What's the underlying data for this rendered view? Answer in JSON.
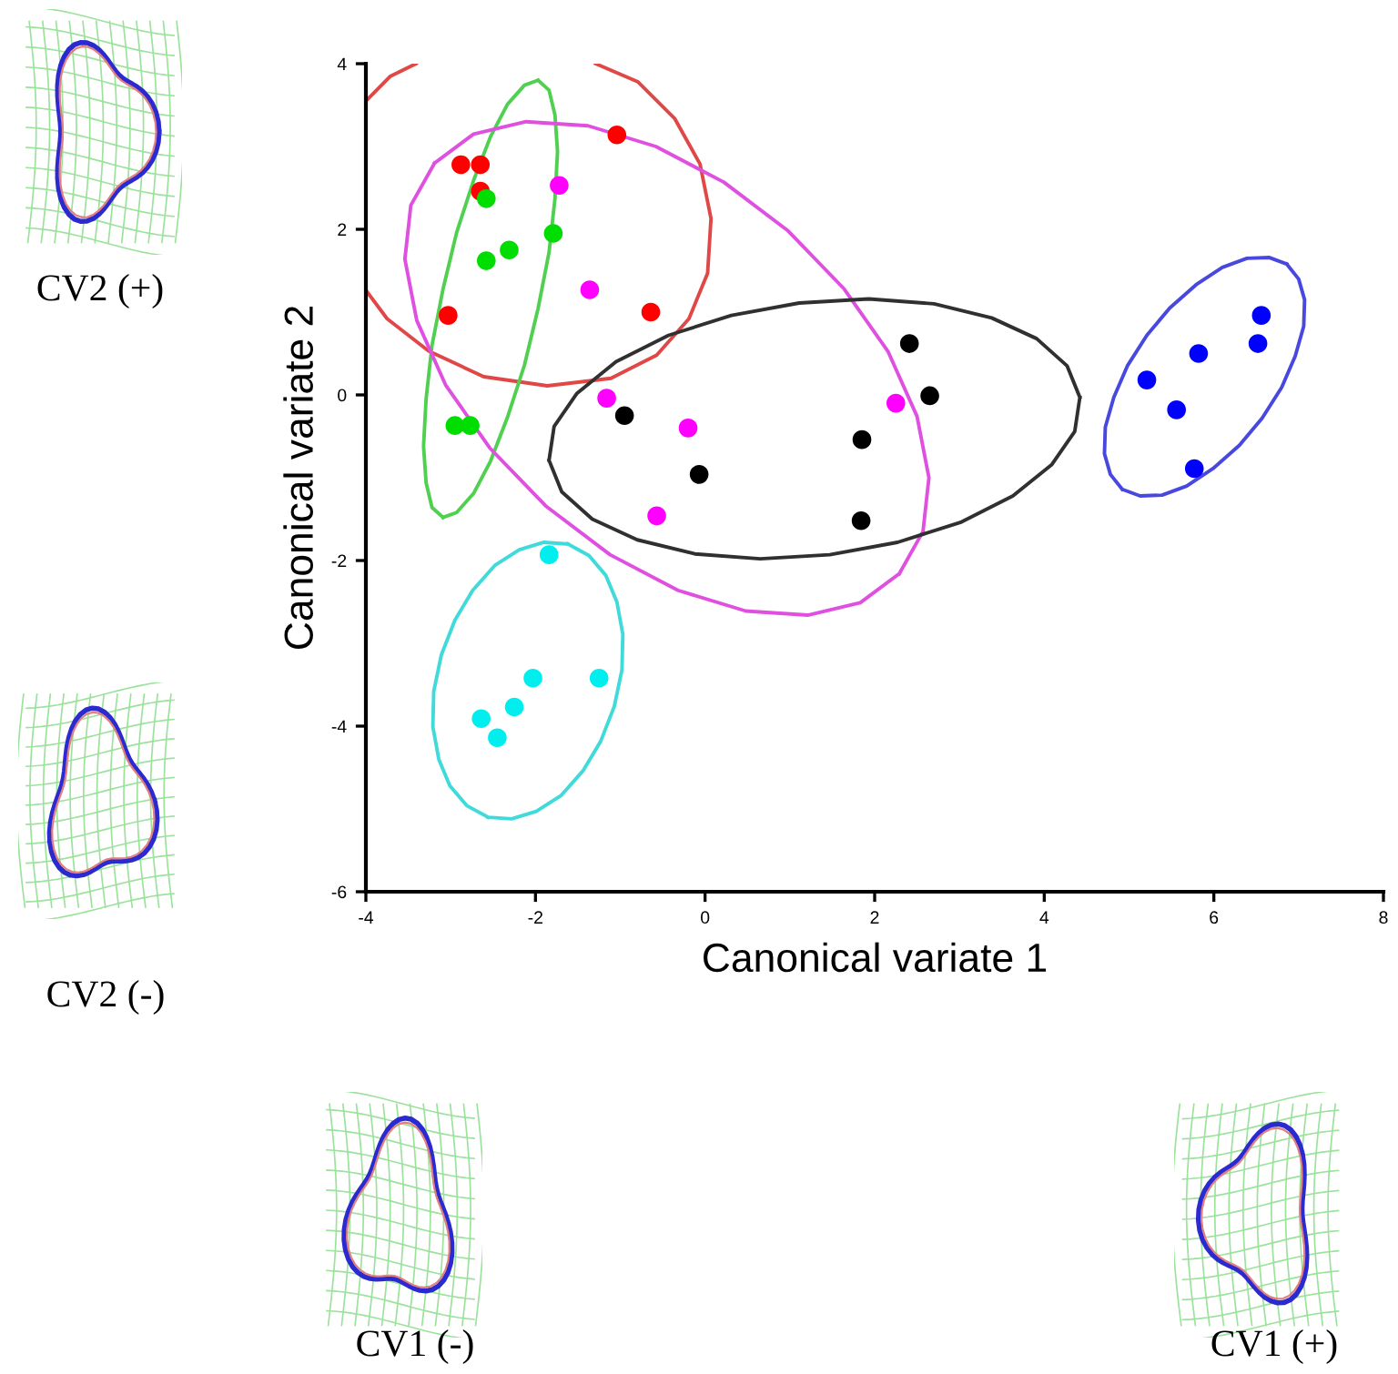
{
  "chart_data": {
    "type": "scatter",
    "xlabel": "Canonical variate 1",
    "ylabel": "Canonical variate 2",
    "xlim": [
      -4,
      8
    ],
    "xticks": [
      -4,
      -2,
      0,
      2,
      4,
      6,
      8
    ],
    "ylim": [
      -6,
      4
    ],
    "yticks": [
      -6,
      -4,
      -2,
      0,
      2,
      4
    ],
    "grid": false,
    "legend": false,
    "marker": "circle",
    "annotations": [
      "CV2 (+)",
      "CV2 (-)",
      "CV1 (-)",
      "CV1 (+)"
    ],
    "series": [
      {
        "color": "#ff0000",
        "x": [
          -2.88,
          -2.65,
          -2.65,
          -3.03,
          -1.04,
          -0.64
        ],
        "values": [
          2.78,
          2.78,
          2.46,
          0.96,
          3.14,
          1.0
        ]
      },
      {
        "color": "#00dd00",
        "x": [
          -2.58,
          -2.58,
          -2.31,
          -1.79,
          -2.95,
          -2.77
        ],
        "values": [
          2.37,
          1.62,
          1.75,
          1.95,
          -0.37,
          -0.37
        ]
      },
      {
        "color": "#ff00ff",
        "x": [
          -1.72,
          -1.36,
          -1.16,
          -0.2,
          -0.57,
          2.25
        ],
        "values": [
          2.53,
          1.27,
          -0.04,
          -0.4,
          -1.46,
          -0.1
        ]
      },
      {
        "color": "#000000",
        "x": [
          -0.95,
          -0.07,
          1.85,
          1.84,
          2.41,
          2.65
        ],
        "values": [
          -0.25,
          -0.96,
          -0.54,
          -1.52,
          0.62,
          -0.01
        ]
      },
      {
        "color": "#0000ff",
        "x": [
          5.21,
          5.82,
          5.56,
          6.56,
          6.52,
          5.77
        ],
        "values": [
          0.18,
          0.5,
          -0.18,
          0.96,
          0.62,
          -0.89
        ]
      },
      {
        "color": "#00eeee",
        "x": [
          -1.84,
          -2.03,
          -1.25,
          -2.25,
          -2.64,
          -2.45
        ],
        "values": [
          -1.93,
          -3.42,
          -3.42,
          -3.77,
          -3.91,
          -4.14
        ]
      },
      {
        "type": "line",
        "marker": "none",
        "color": "#e04848",
        "x": [
          -1.29,
          -0.79,
          -0.36,
          -0.06,
          0.07,
          0.03,
          -0.19,
          -0.57,
          -1.11,
          -1.86,
          -2.61,
          -3.26,
          -3.75,
          -3.99,
          null,
          -3.99,
          -3.71,
          -3.41
        ],
        "values": [
          4.0,
          3.78,
          3.34,
          2.79,
          2.13,
          1.47,
          0.92,
          0.48,
          0.2,
          0.11,
          0.22,
          0.53,
          0.92,
          1.25,
          null,
          3.56,
          3.85,
          4.0
        ]
      },
      {
        "type": "line",
        "marker": "none",
        "color": "#50d050",
        "x": [
          -1.97,
          -1.84,
          -1.77,
          -1.74,
          -1.77,
          -1.84,
          -1.97,
          -2.13,
          -2.33,
          -2.53,
          -2.73,
          -2.93,
          -3.09,
          null,
          -3.09,
          -3.22,
          -3.29,
          -3.32,
          -3.29,
          -3.22,
          -3.09,
          -2.93,
          -2.73,
          -2.53,
          -2.33,
          -2.13,
          -1.97
        ],
        "values": [
          3.8,
          3.68,
          3.38,
          2.94,
          2.37,
          1.72,
          1.04,
          0.36,
          -0.27,
          -0.8,
          -1.19,
          -1.42,
          -1.48,
          null,
          -1.48,
          -1.36,
          -1.06,
          -0.62,
          -0.05,
          0.6,
          1.28,
          1.96,
          2.59,
          3.12,
          3.51,
          3.74,
          3.8
        ]
      },
      {
        "type": "line",
        "marker": "none",
        "color": "#e050e0",
        "x": [
          2.29,
          1.83,
          1.21,
          0.48,
          -0.32,
          -1.12,
          -1.88,
          -2.54,
          -3.06,
          -3.4,
          -3.54,
          -3.47,
          -3.19,
          null,
          -3.19,
          -2.73,
          -2.11,
          -1.38,
          -0.58,
          0.22,
          0.98,
          1.64,
          2.16,
          2.5,
          2.64,
          2.57,
          2.29
        ],
        "values": [
          -2.16,
          -2.51,
          -2.66,
          -2.61,
          -2.36,
          -1.93,
          -1.34,
          -0.64,
          0.12,
          0.9,
          1.64,
          2.29,
          2.8,
          null,
          2.8,
          3.15,
          3.3,
          3.25,
          3.0,
          2.57,
          1.98,
          1.28,
          0.52,
          -0.26,
          -1.0,
          -1.65,
          -2.16
        ]
      },
      {
        "type": "line",
        "marker": "none",
        "color": "#303030",
        "x": [
          4.42,
          4.27,
          3.91,
          3.38,
          2.7,
          1.93,
          1.11,
          0.31,
          -0.43,
          -1.05,
          -1.51,
          -1.78,
          -1.84,
          null,
          -1.84,
          -1.69,
          -1.33,
          -0.8,
          -0.12,
          0.65,
          1.47,
          2.27,
          3.01,
          3.63,
          4.09,
          4.36,
          4.42
        ],
        "values": [
          -0.03,
          0.35,
          0.68,
          0.93,
          1.1,
          1.16,
          1.11,
          0.96,
          0.72,
          0.4,
          0.02,
          -0.38,
          -0.79,
          null,
          -0.79,
          -1.17,
          -1.5,
          -1.75,
          -1.92,
          -1.98,
          -1.93,
          -1.78,
          -1.54,
          -1.22,
          -0.84,
          -0.44,
          -0.03
        ]
      },
      {
        "type": "line",
        "marker": "none",
        "color": "#4848e0",
        "x": [
          6.86,
          7.0,
          7.07,
          7.06,
          6.96,
          6.8,
          6.57,
          6.3,
          5.99,
          5.68,
          5.39,
          5.13,
          4.92,
          null,
          4.92,
          4.78,
          4.71,
          4.72,
          4.82,
          4.98,
          5.21,
          5.48,
          5.79,
          6.1,
          6.39,
          6.65,
          6.86
        ],
        "values": [
          1.58,
          1.4,
          1.15,
          0.83,
          0.47,
          0.09,
          -0.28,
          -0.61,
          -0.89,
          -1.1,
          -1.21,
          -1.22,
          -1.14,
          null,
          -1.14,
          -0.96,
          -0.71,
          -0.39,
          -0.03,
          0.35,
          0.72,
          1.05,
          1.33,
          1.54,
          1.65,
          1.66,
          1.58
        ]
      },
      {
        "type": "line",
        "marker": "none",
        "color": "#40dada",
        "x": [
          -1.62,
          -1.37,
          -1.17,
          -1.04,
          -0.97,
          -0.98,
          -1.07,
          -1.23,
          -1.44,
          -1.7,
          -1.99,
          -2.28,
          -2.56,
          null,
          -2.56,
          -2.81,
          -3.01,
          -3.14,
          -3.21,
          -3.2,
          -3.11,
          -2.95,
          -2.74,
          -2.48,
          -2.19,
          -1.9,
          -1.62
        ],
        "values": [
          -1.8,
          -1.94,
          -2.18,
          -2.5,
          -2.89,
          -3.32,
          -3.76,
          -4.18,
          -4.54,
          -4.84,
          -5.03,
          -5.12,
          -5.1,
          null,
          -5.1,
          -4.96,
          -4.72,
          -4.4,
          -4.01,
          -3.58,
          -3.14,
          -2.72,
          -2.36,
          -2.06,
          -1.87,
          -1.78,
          -1.8
        ]
      }
    ]
  }
}
